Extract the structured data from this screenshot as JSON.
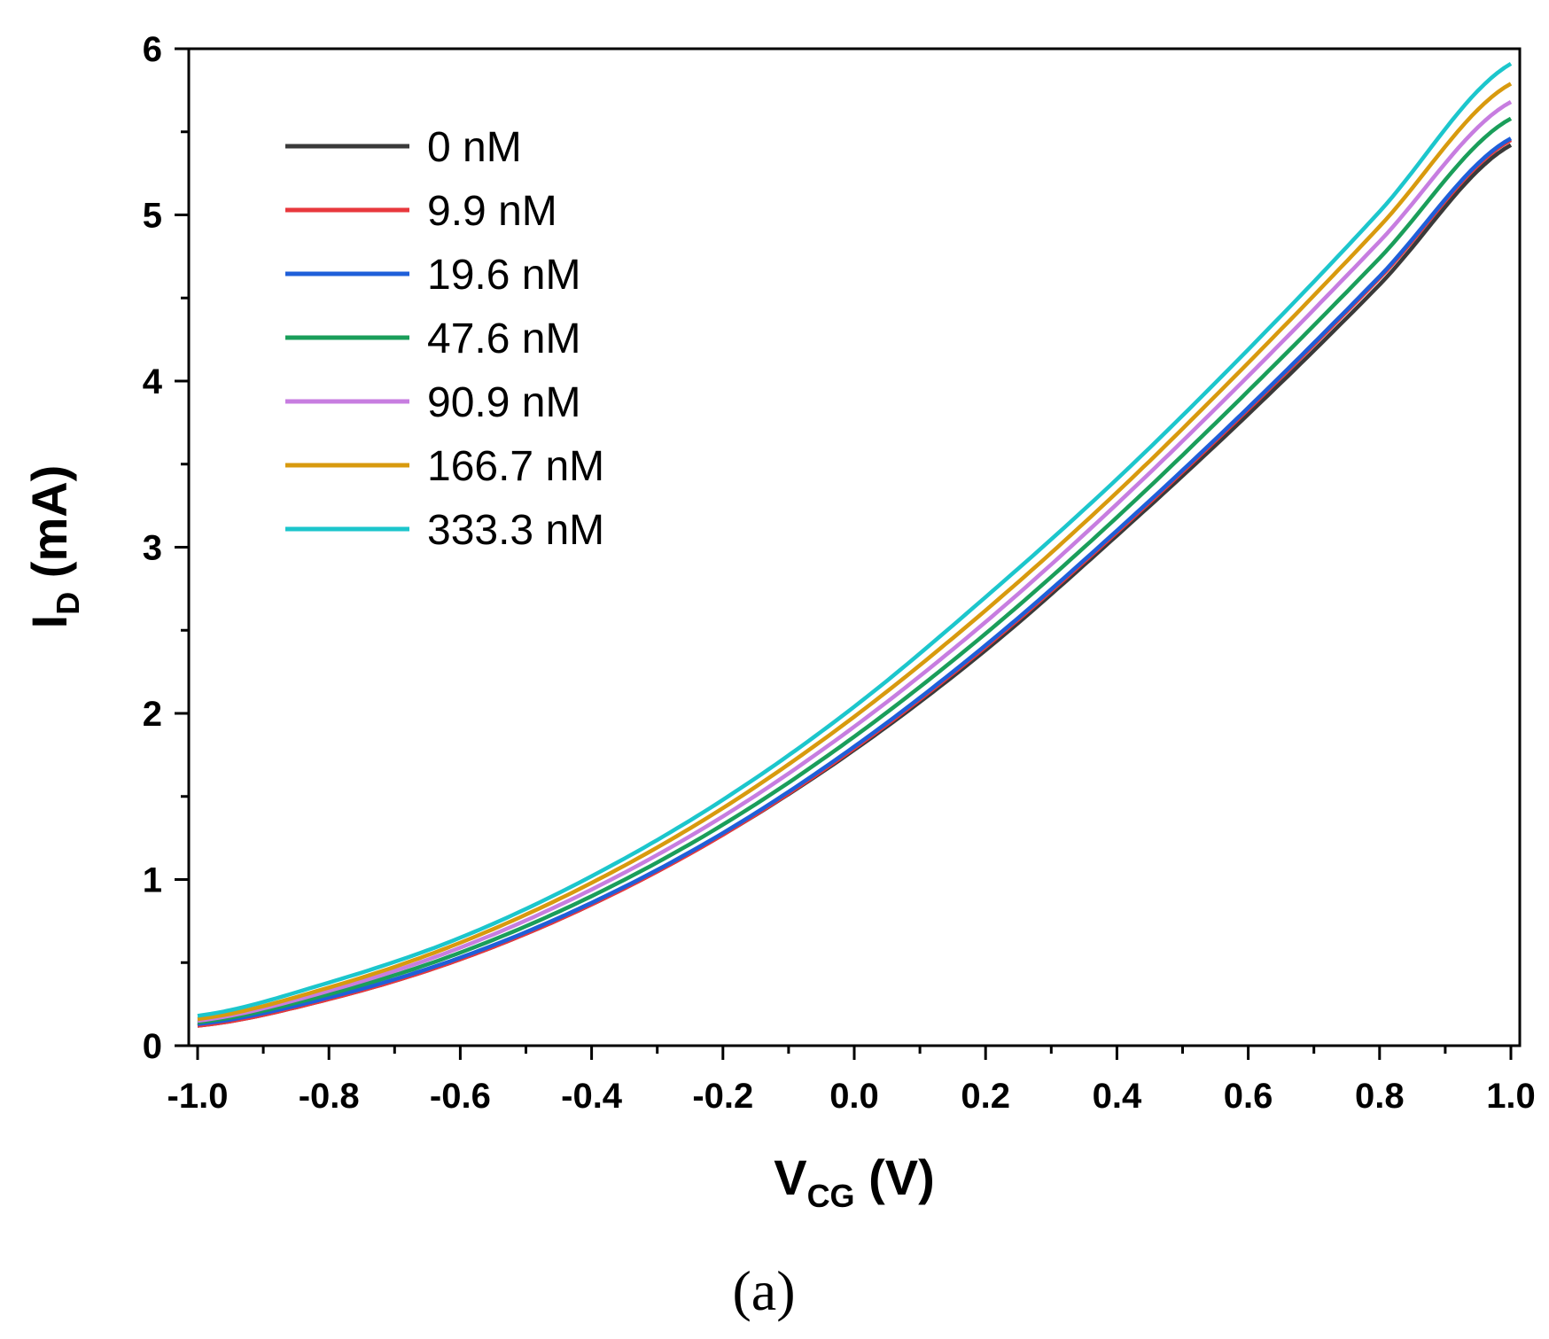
{
  "chart_data": {
    "type": "line",
    "title": "",
    "xlabel": {
      "main": "V",
      "sub": "CG",
      "unit": " (V)"
    },
    "ylabel": {
      "main": "I",
      "sub": "D",
      "unit": " (mA)"
    },
    "xlim": [
      -1.0,
      1.0
    ],
    "ylim": [
      0,
      6
    ],
    "xticks": [
      "-1.0",
      "-0.8",
      "-0.6",
      "-0.4",
      "-0.2",
      "0.0",
      "0.2",
      "0.4",
      "0.6",
      "0.8",
      "1.0"
    ],
    "yticks": [
      "0",
      "1",
      "2",
      "3",
      "4",
      "5",
      "6"
    ],
    "grid": false,
    "legend_position": "top-left",
    "x": [
      -1.0,
      -0.8,
      -0.6,
      -0.4,
      -0.2,
      0.0,
      0.2,
      0.4,
      0.6,
      0.8,
      1.0
    ],
    "series": [
      {
        "name": "0 nM",
        "color": "#3a3a3a",
        "values": [
          0.12,
          0.28,
          0.52,
          0.85,
          1.27,
          1.78,
          2.38,
          3.07,
          3.8,
          4.58,
          5.42
        ]
      },
      {
        "name": "9.9 nM",
        "color": "#e8383d",
        "values": [
          0.12,
          0.28,
          0.52,
          0.85,
          1.27,
          1.79,
          2.4,
          3.09,
          3.83,
          4.62,
          5.45
        ]
      },
      {
        "name": "19.6 nM",
        "color": "#1f5fd9",
        "values": [
          0.13,
          0.29,
          0.53,
          0.86,
          1.28,
          1.8,
          2.41,
          3.1,
          3.84,
          4.63,
          5.46
        ]
      },
      {
        "name": "47.6 nM",
        "color": "#1a9e5a",
        "values": [
          0.14,
          0.31,
          0.56,
          0.9,
          1.33,
          1.86,
          2.48,
          3.18,
          3.94,
          4.74,
          5.58
        ]
      },
      {
        "name": "90.9 nM",
        "color": "#c77de0",
        "values": [
          0.15,
          0.33,
          0.59,
          0.94,
          1.38,
          1.92,
          2.55,
          3.26,
          4.03,
          4.84,
          5.68
        ]
      },
      {
        "name": "166.7 nM",
        "color": "#d89a0e",
        "values": [
          0.16,
          0.35,
          0.62,
          0.98,
          1.43,
          1.98,
          2.62,
          3.33,
          4.11,
          4.93,
          5.79
        ]
      },
      {
        "name": "333.3 nM",
        "color": "#1cc6cc",
        "values": [
          0.18,
          0.38,
          0.65,
          1.02,
          1.48,
          2.04,
          2.7,
          3.41,
          4.19,
          5.02,
          5.91
        ]
      }
    ]
  },
  "panel_label": "(a)"
}
